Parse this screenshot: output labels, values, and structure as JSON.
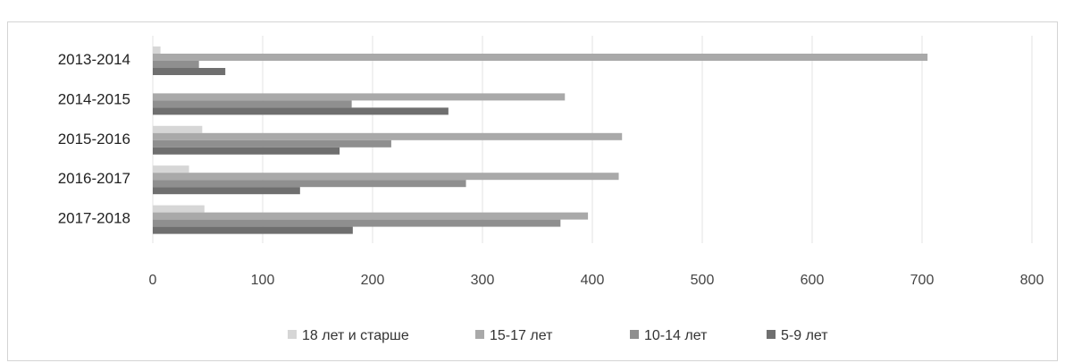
{
  "title": "",
  "chart_data": {
    "type": "bar",
    "orientation": "horizontal",
    "title": "",
    "xlabel": "",
    "ylabel": "",
    "xlim": [
      0,
      800
    ],
    "ticks": [
      "0",
      "100",
      "200",
      "300",
      "400",
      "500",
      "600",
      "700",
      "800"
    ],
    "grid": true,
    "legend_position": "bottom",
    "categories": [
      "2013-2014",
      "2014-2015",
      "2015-2016",
      "2016-2017",
      "2017-2018"
    ],
    "series": [
      {
        "name": "18 лет и старше",
        "color": "#d6d6d6",
        "values": [
          7,
          0,
          45,
          33,
          47
        ]
      },
      {
        "name": "15-17 лет",
        "color": "#a9a9a9",
        "values": [
          705,
          375,
          427,
          424,
          396
        ]
      },
      {
        "name": "10-14 лет",
        "color": "#8f8f8f",
        "values": [
          42,
          181,
          217,
          285,
          371
        ]
      },
      {
        "name": "5-9 лет",
        "color": "#6f6f6f",
        "values": [
          66,
          269,
          170,
          134,
          182
        ]
      }
    ]
  }
}
